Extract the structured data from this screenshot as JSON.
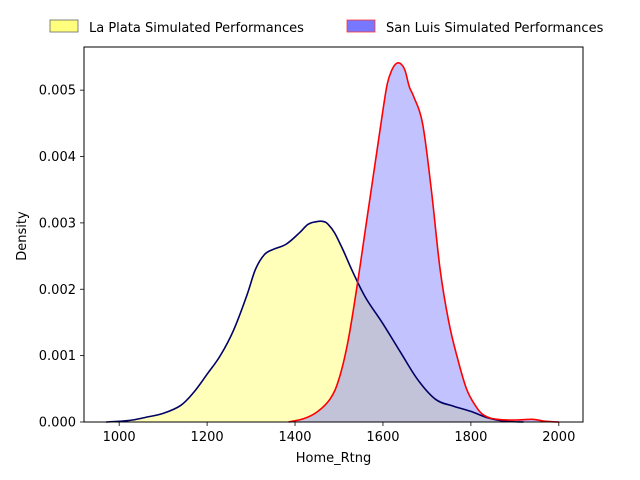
{
  "chart_data": {
    "type": "area",
    "title": "",
    "xlabel": "Home_Rtng",
    "ylabel": "Density",
    "xlim": [
      920,
      2055
    ],
    "ylim": [
      0,
      0.00565
    ],
    "xticks": [
      1000,
      1200,
      1400,
      1600,
      1800,
      2000
    ],
    "xtick_labels": [
      "1000",
      "1200",
      "1400",
      "1600",
      "1800",
      "2000"
    ],
    "yticks": [
      0,
      0.001,
      0.002,
      0.003,
      0.004,
      0.005
    ],
    "ytick_labels": [
      "0.000",
      "0.001",
      "0.002",
      "0.003",
      "0.004",
      "0.005"
    ],
    "grid": false,
    "legend_position": "top, outside plot",
    "series": [
      {
        "name": "La Plata Simulated Performances",
        "fill": "#ffff66",
        "line": "#000066",
        "x": [
          970,
          1000,
          1030,
          1060,
          1100,
          1140,
          1170,
          1200,
          1230,
          1260,
          1290,
          1310,
          1330,
          1350,
          1380,
          1410,
          1430,
          1450,
          1465,
          1475,
          1490,
          1510,
          1530,
          1560,
          1600,
          1640,
          1680,
          1720,
          1760,
          1800,
          1840,
          1880,
          1920
        ],
        "values": [
          0.0,
          1e-05,
          3e-05,
          7e-05,
          0.00013,
          0.00025,
          0.00045,
          0.00072,
          0.001,
          0.00138,
          0.0019,
          0.0023,
          0.00252,
          0.0026,
          0.00268,
          0.00285,
          0.00298,
          0.00302,
          0.00302,
          0.00298,
          0.00285,
          0.00258,
          0.00228,
          0.00188,
          0.00148,
          0.00105,
          0.00063,
          0.00034,
          0.00024,
          0.00016,
          6e-05,
          1e-05,
          0.0
        ]
      },
      {
        "name": "San Luis Simulated Performances",
        "fill": "#7777ff",
        "line": "#ff0000",
        "x": [
          1385,
          1420,
          1450,
          1480,
          1500,
          1520,
          1540,
          1560,
          1580,
          1600,
          1610,
          1620,
          1630,
          1640,
          1650,
          1660,
          1670,
          1690,
          1710,
          1730,
          1750,
          1770,
          1790,
          1810,
          1830,
          1860,
          1900,
          1940,
          1970,
          2000
        ],
        "values": [
          0.0,
          5e-05,
          0.00015,
          0.00035,
          0.00065,
          0.0012,
          0.002,
          0.0029,
          0.0038,
          0.0047,
          0.0051,
          0.0053,
          0.0054,
          0.0054,
          0.0053,
          0.00505,
          0.0049,
          0.0045,
          0.0035,
          0.0023,
          0.0015,
          0.00095,
          0.0005,
          0.00025,
          0.0001,
          4e-05,
          3e-05,
          4e-05,
          1e-05,
          0.0
        ]
      }
    ]
  }
}
